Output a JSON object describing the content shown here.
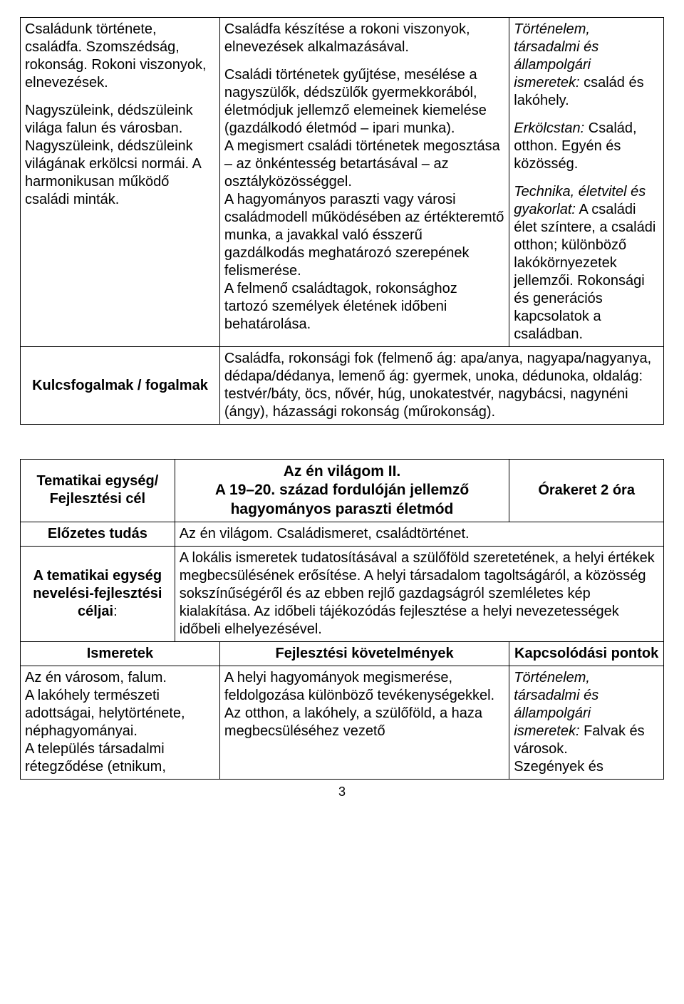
{
  "table1": {
    "row1": {
      "col1": {
        "p1": "Családunk története, családfa. Szomszédság, rokonság. Rokoni viszonyok, elnevezések.",
        "p2": "Nagyszüleink, dédszüleink világa falun és városban. Nagyszüleink, dédszüleink világának erkölcsi normái. A harmonikusan működő családi minták."
      },
      "col2": {
        "p1": "Családfa készítése a rokoni viszonyok, elnevezések alkalmazásával.",
        "p2": "Családi történetek gyűjtése, mesélése a nagyszülők, dédszülők gyermekkorából, életmódjuk jellemző elemeinek kiemelése (gazdálkodó életmód – ipari munka).",
        "p3": "A megismert családi történetek megosztása – az önkéntesség betartásával – az osztályközösséggel.",
        "p4": "A hagyományos paraszti vagy városi családmodell működésében az értékteremtő munka, a javakkal való ésszerű gazdálkodás meghatározó szerepének felismerése.",
        "p5": "A felmenő családtagok, rokonsághoz tartozó személyek életének időbeni behatárolása."
      },
      "col3": {
        "b1_label": "Történelem, társadalmi és állampolgári ismeretek:",
        "b1_text": " család és lakóhely.",
        "b2_label": "Erkölcstan:",
        "b2_text": " Család, otthon. Egyén és közösség.",
        "b3_label": "Technika, életvitel és gyakorlat:",
        "b3_text": " A családi élet színtere, a családi otthon; különböző lakókörnyezetek jellemzői. Rokonsági és generációs kapcsolatok a családban."
      }
    },
    "row2": {
      "label": "Kulcsfogalmak / fogalmak",
      "text": "Családfa, rokonsági fok (felmenő ág: apa/anya, nagyapa/nagyanya, dédapa/dédanya, lemenő ág: gyermek, unoka, dédunoka, oldalág: testvér/báty, öcs, nővér, húg, unokatestvér, nagybácsi, nagynéni (ángy), házassági rokonság (műrokonság)."
    }
  },
  "table2": {
    "r1": {
      "label": "Tematikai egység/ Fejlesztési cél",
      "title_l1": "Az én világom II.",
      "title_l2": "A 19–20. század fordulóján jellemző hagyományos paraszti életmód",
      "hours": "Órakeret 2 óra"
    },
    "r2": {
      "label": "Előzetes tudás",
      "text": "Az én világom. Családismeret, családtörténet."
    },
    "r3": {
      "label": "A tematikai egység nevelési-fejlesztési céljai",
      "text": "A lokális ismeretek tudatosításával a szülőföld szeretetének, a helyi értékek megbecsülésének erősítése. A helyi társadalom tagoltságáról, a közösség sokszínűségéről és az ebben rejlő gazdagságról szemléletes kép kialakítása. Az időbeli tájékozódás fejlesztése a helyi nevezetességek időbeli elhelyezésével."
    },
    "r4": {
      "h1": "Ismeretek",
      "h2": "Fejlesztési követelmények",
      "h3": "Kapcsolódási pontok"
    },
    "r5": {
      "c1": "Az én városom, falum.\nA lakóhely természeti adottságai, helytörténete, néphagyományai.\nA település társadalmi rétegződése (etnikum,",
      "c2": "A helyi hagyományok megismerése, feldolgozása különböző tevékenységekkel.\nAz otthon, a lakóhely, a szülőföld, a haza megbecsüléséhez vezető",
      "c3_label": "Történelem, társadalmi és állampolgári ismeretek:",
      "c3_text1": " Falvak és városok.",
      "c3_text2": "Szegények és"
    }
  },
  "pageNumber": "3"
}
